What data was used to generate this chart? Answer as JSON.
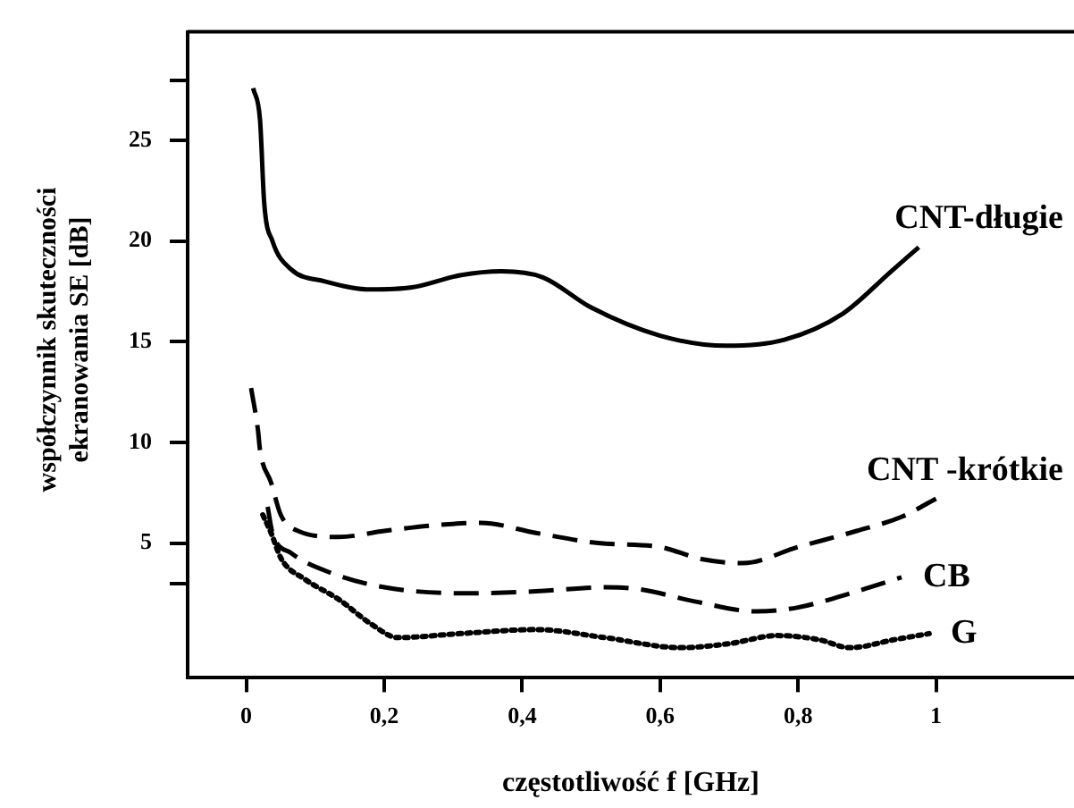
{
  "chart_data": {
    "type": "line",
    "xlabel": "częstotliwość f [GHz]",
    "ylabel": "współczynnik skuteczności ekranowania SE [dB]",
    "xlim": [
      -0.085,
      1.2
    ],
    "ylim": [
      -1.7,
      30.4
    ],
    "xticks": [
      0,
      {
        "value": 0.2,
        "label": "0,2"
      },
      {
        "value": 0.4,
        "label": "0,4"
      },
      {
        "value": 0.6,
        "label": "0,6"
      },
      {
        "value": 0.8,
        "label": "0,8"
      },
      1
    ],
    "yticks": [
      {
        "value": 3,
        "label": null
      },
      5,
      10,
      15,
      20,
      25,
      {
        "value": 28,
        "label": null
      }
    ],
    "grid": false,
    "legend": false,
    "marker": "none",
    "series": [
      {
        "name": "CNT-długie",
        "color": "#000000",
        "line_style": "solid",
        "x": [
          0.01,
          0.02,
          0.026,
          0.038,
          0.065,
          0.114,
          0.18,
          0.24,
          0.31,
          0.37,
          0.43,
          0.5,
          0.6,
          0.695,
          0.78,
          0.865,
          0.935,
          0.975
        ],
        "values": [
          27.6,
          26.0,
          21.9,
          20.0,
          18.6,
          18.0,
          17.6,
          17.7,
          18.3,
          18.5,
          18.2,
          16.7,
          15.3,
          14.8,
          15.1,
          16.4,
          18.5,
          19.7
        ]
      },
      {
        "name": "CNT -krótkie",
        "color": "#000000",
        "line_style": "dashed",
        "x": [
          0.007,
          0.017,
          0.02,
          0.036,
          0.05,
          0.075,
          0.134,
          0.2,
          0.28,
          0.34,
          0.42,
          0.51,
          0.6,
          0.66,
          0.72,
          0.8,
          0.885,
          0.95,
          1.0
        ],
        "values": [
          12.7,
          10.6,
          9.6,
          8.0,
          6.4,
          5.6,
          5.3,
          5.6,
          5.9,
          6.0,
          5.5,
          5.0,
          4.8,
          4.2,
          4.0,
          4.8,
          5.6,
          6.3,
          7.2
        ]
      },
      {
        "name": "CB",
        "color": "#000000",
        "line_style": "dashed",
        "x": [
          0.031,
          0.038,
          0.065,
          0.124,
          0.2,
          0.32,
          0.42,
          0.52,
          0.57,
          0.65,
          0.74,
          0.8,
          0.885,
          0.95
        ],
        "values": [
          6.8,
          5.5,
          4.5,
          3.5,
          2.8,
          2.5,
          2.6,
          2.8,
          2.7,
          2.1,
          1.6,
          1.8,
          2.6,
          3.3
        ]
      },
      {
        "name": "G",
        "color": "#000000",
        "line_style": "dotted",
        "x": [
          0.024,
          0.036,
          0.051,
          0.085,
          0.134,
          0.18,
          0.22,
          0.31,
          0.42,
          0.52,
          0.63,
          0.7,
          0.77,
          0.83,
          0.875,
          0.94,
          0.99
        ],
        "values": [
          6.4,
          5.5,
          4.2,
          3.2,
          2.2,
          1.0,
          0.3,
          0.5,
          0.7,
          0.3,
          -0.2,
          0.0,
          0.4,
          0.2,
          -0.2,
          0.2,
          0.5
        ]
      }
    ]
  }
}
